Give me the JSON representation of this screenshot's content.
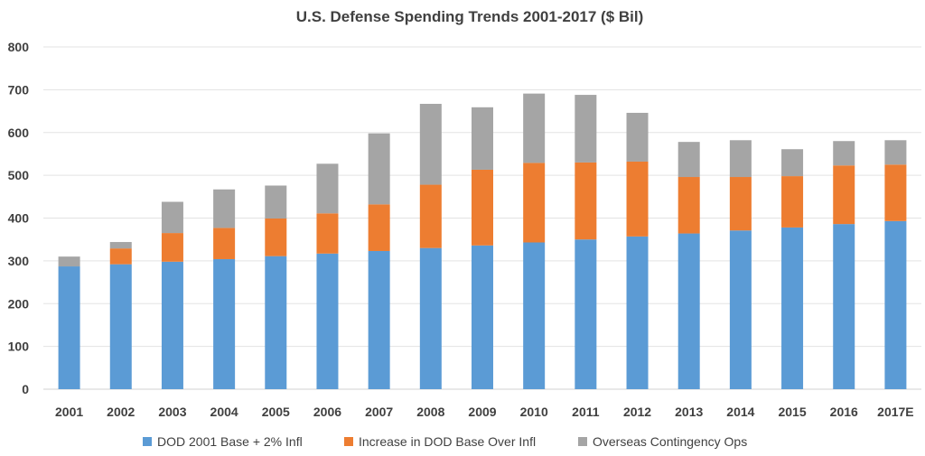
{
  "chart_data": {
    "type": "bar",
    "stacked": true,
    "title": "U.S. Defense Spending Trends 2001-2017 ($ Bil)",
    "xlabel": "",
    "ylabel": "",
    "ylim": [
      0,
      800
    ],
    "yticks": [
      0,
      100,
      200,
      300,
      400,
      500,
      600,
      700,
      800
    ],
    "ytick_labels": [
      "0",
      "100",
      "200",
      "300",
      "400",
      "500",
      "600",
      "700",
      "800"
    ],
    "grid": true,
    "legend_position": "bottom",
    "categories": [
      "2001",
      "2002",
      "2003",
      "2004",
      "2005",
      "2006",
      "2007",
      "2008",
      "2009",
      "2010",
      "2011",
      "2012",
      "2013",
      "2014",
      "2015",
      "2016",
      "2017E"
    ],
    "series": [
      {
        "name": "DOD 2001 Base + 2% Infl",
        "color": "#5b9bd5",
        "values": [
          287,
          292,
          298,
          304,
          311,
          317,
          323,
          330,
          336,
          343,
          350,
          357,
          364,
          371,
          378,
          386,
          393
        ]
      },
      {
        "name": "Increase in DOD Base Over Infl",
        "color": "#ed7d31",
        "values": [
          0,
          37,
          67,
          73,
          88,
          94,
          109,
          148,
          177,
          186,
          180,
          175,
          132,
          125,
          120,
          137,
          132
        ]
      },
      {
        "name": "Overseas Contingency Ops",
        "color": "#a5a5a5",
        "values": [
          23,
          15,
          73,
          90,
          77,
          116,
          166,
          189,
          146,
          162,
          158,
          114,
          82,
          86,
          63,
          57,
          57
        ]
      }
    ]
  }
}
